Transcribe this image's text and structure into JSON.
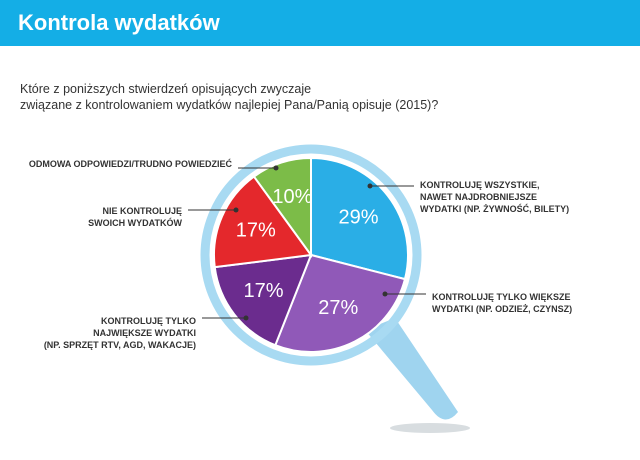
{
  "chart_data": {
    "type": "pie",
    "title": "Kontrola wydatków",
    "subtitle": [
      "Które z poniższych stwierdzeń opisujących zwyczaje",
      "związane z kontrolowaniem wydatków najlepiej Pana/Panią opisuje (2015)?"
    ],
    "categories": [
      [
        "KONTROLUJĘ WSZYSTKIE,",
        "NAWET NAJDROBNIEJSZE",
        "WYDATKI (NP. ŻYWNOŚĆ, BILETY)"
      ],
      [
        "KONTROLUJĘ TYLKO WIĘKSZE",
        "WYDATKI (NP. ODZIEŻ, CZYNSZ)"
      ],
      [
        "KONTROLUJĘ TYLKO",
        "NAJWIĘKSZE WYDATKI",
        "(NP. SPRZĘT RTV, AGD, WAKACJE)"
      ],
      [
        "NIE KONTROLUJĘ",
        "SWOICH WYDATKÓW"
      ],
      [
        "ODMOWA ODPOWIEDZI/TRUDNO POWIEDZIEĆ"
      ]
    ],
    "values": [
      29,
      27,
      17,
      17,
      10
    ],
    "value_labels": [
      "29%",
      "27%",
      "17%",
      "17%",
      "10%"
    ],
    "colors": [
      "#2aaee6",
      "#9059b8",
      "#6b2c8e",
      "#e4282c",
      "#7cbc48"
    ]
  }
}
